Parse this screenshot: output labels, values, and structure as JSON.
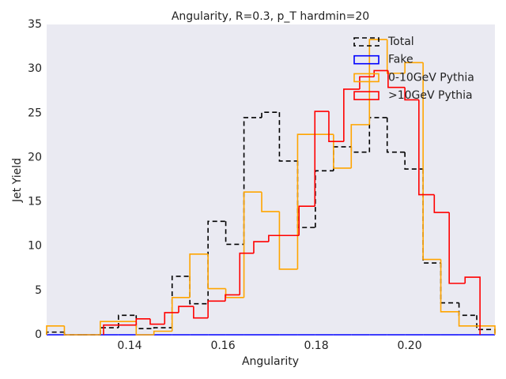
{
  "chart_data": {
    "type": "step-histogram",
    "title": "Angularity, R=0.3, p_T hardmin=20",
    "x_label": "Angularity",
    "y_label": "Jet Yield",
    "xlim": [
      0.1222,
      0.2183
    ],
    "ylim": [
      0,
      35
    ],
    "xticks": [
      0.14,
      0.16,
      0.18,
      {
        "value": 0.2,
        "label": "0.20"
      }
    ],
    "yticks": [
      0,
      5,
      10,
      15,
      20,
      25,
      30,
      35
    ],
    "grid": false,
    "legend": "upper right",
    "background": "#eaeaf2",
    "series": [
      {
        "name": "Total",
        "color": "#000000",
        "dashed": true,
        "bins": [
          0.1222,
          0.126,
          0.1299,
          0.1337,
          0.1376,
          0.1414,
          0.1452,
          0.1491,
          0.1529,
          0.1568,
          0.1606,
          0.1645,
          0.1683,
          0.1721,
          0.176,
          0.1798,
          0.1837,
          0.1875,
          0.1914,
          0.1952,
          0.199,
          0.2029,
          0.2067,
          0.2106,
          0.2144,
          0.2183
        ],
        "values": [
          0.3,
          0,
          0,
          0.8,
          2.2,
          0.7,
          0.8,
          6.6,
          3.5,
          12.8,
          10.2,
          24.5,
          25.1,
          19.6,
          12.1,
          18.5,
          21.2,
          20.6,
          24.5,
          20.6,
          18.7,
          8.1,
          3.6,
          2.2,
          0.6
        ]
      },
      {
        "name": "Fake",
        "color": "#0000ff",
        "dashed": false,
        "bins": [
          0.1222,
          0.126,
          0.1299,
          0.1337,
          0.1376,
          0.1414,
          0.1452,
          0.1491,
          0.1529,
          0.1568,
          0.1606,
          0.1645,
          0.1683,
          0.1721,
          0.176,
          0.1798,
          0.1837,
          0.1875,
          0.1914,
          0.1952,
          0.199,
          0.2029,
          0.2067,
          0.2106,
          0.2144,
          0.2183
        ],
        "values": [
          0,
          0,
          0,
          0,
          0,
          0,
          0,
          0,
          0,
          0,
          0,
          0,
          0,
          0,
          0,
          0,
          0,
          0,
          0,
          0,
          0,
          0,
          0,
          0,
          0
        ]
      },
      {
        "name": "0-10GeV Pythia",
        "color": "#ffa500",
        "dashed": false,
        "bins": [
          0.1222,
          0.126,
          0.1299,
          0.1337,
          0.1376,
          0.1414,
          0.1452,
          0.1491,
          0.1529,
          0.1568,
          0.1606,
          0.1645,
          0.1683,
          0.1721,
          0.176,
          0.1798,
          0.1837,
          0.1875,
          0.1914,
          0.1952,
          0.199,
          0.2029,
          0.2067,
          0.2106,
          0.2144,
          0.2183
        ],
        "values": [
          1.0,
          0,
          0,
          1.5,
          1.5,
          0,
          0.4,
          4.2,
          9.1,
          5.2,
          4.2,
          16.1,
          13.9,
          7.4,
          22.6,
          22.6,
          18.8,
          23.7,
          33.3,
          29.5,
          30.7,
          8.5,
          2.6,
          1.0,
          1.0
        ]
      },
      {
        "name": ">10GeV Pythia",
        "color": "#ff0000",
        "dashed": false,
        "bins": [
          0.1344,
          0.1414,
          0.1444,
          0.1475,
          0.1505,
          0.1537,
          0.1568,
          0.1605,
          0.1636,
          0.1666,
          0.1698,
          0.1763,
          0.1797,
          0.1827,
          0.1859,
          0.1893,
          0.1924,
          0.1954,
          0.199,
          0.202,
          0.2053,
          0.2085,
          0.2119,
          0.2151
        ],
        "values": [
          1.1,
          1.8,
          1.2,
          2.5,
          3.2,
          1.9,
          3.8,
          4.5,
          9.2,
          10.5,
          11.2,
          14.5,
          25.2,
          21.8,
          27.7,
          29.1,
          29.8,
          27.9,
          26.5,
          15.8,
          13.8,
          5.8,
          6.5
        ]
      }
    ]
  }
}
